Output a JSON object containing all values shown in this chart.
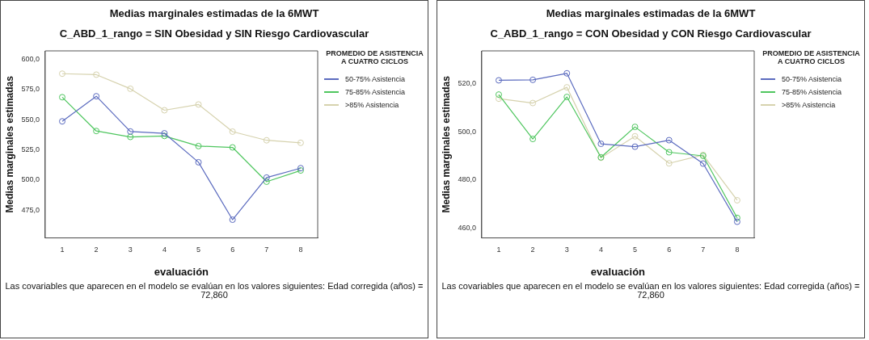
{
  "chart_data": [
    {
      "type": "line",
      "title": "Medias marginales estimadas de la 6MWT",
      "subtitle": "C_ABD_1_rango = SIN Obesidad y SIN Riesgo Cardiovascular",
      "xlabel": "evaluación",
      "ylabel": "Medias marginales estimadas",
      "legend_title": "PROMEDIO DE ASISTENCIA A CUATRO CICLOS",
      "legend": "right",
      "marker": "circle",
      "grid": false,
      "categories": [
        "1",
        "2",
        "3",
        "4",
        "5",
        "6",
        "7",
        "8"
      ],
      "ylim": [
        452,
        607
      ],
      "yticks": [
        {
          "value": 475,
          "label": "475,0"
        },
        {
          "value": 500,
          "label": "500,0"
        },
        {
          "value": 525,
          "label": "525,0"
        },
        {
          "value": 550,
          "label": "550,0"
        },
        {
          "value": 575,
          "label": "575,0"
        },
        {
          "value": 600,
          "label": "600,0"
        }
      ],
      "series": [
        {
          "name": "50-75% Asistencia",
          "color": "#5b6bbf",
          "values": [
            548.6,
            569.4,
            540.2,
            538.7,
            514.7,
            467.1,
            502.0,
            509.8
          ]
        },
        {
          "name": "75-85% Asistencia",
          "color": "#4fc65f",
          "values": [
            568.6,
            540.6,
            535.7,
            536.5,
            528.1,
            527.0,
            498.6,
            507.9
          ]
        },
        {
          "name": ">85% Asistencia",
          "color": "#d6d2ae",
          "values": [
            588.1,
            587.3,
            575.6,
            557.8,
            562.6,
            540.1,
            532.9,
            530.8
          ]
        }
      ],
      "annotations": [
        "Las covariables que aparecen en el modelo se evalúan en los valores siguientes: Edad corregida (años) = 72,860"
      ]
    },
    {
      "type": "line",
      "title": "Medias marginales estimadas de la 6MWT",
      "subtitle": "C_ABD_1_rango = CON Obesidad y CON Riesgo Cardiovascular",
      "xlabel": "evaluación",
      "ylabel": "Medias marginales estimadas",
      "legend_title": "PROMEDIO DE ASISTENCIA A CUATRO CICLOS",
      "legend": "right",
      "marker": "circle",
      "grid": false,
      "categories": [
        "1",
        "2",
        "3",
        "4",
        "5",
        "6",
        "7",
        "8"
      ],
      "ylim": [
        456,
        533.5
      ],
      "yticks": [
        {
          "value": 460,
          "label": "460,0"
        },
        {
          "value": 480,
          "label": "480,0"
        },
        {
          "value": 500,
          "label": "500,0"
        },
        {
          "value": 520,
          "label": "520,0"
        }
      ],
      "series": [
        {
          "name": "50-75% Asistencia",
          "color": "#5b6bbf",
          "values": [
            521.3,
            521.5,
            524.2,
            495.0,
            493.8,
            496.5,
            486.8,
            462.7
          ]
        },
        {
          "name": "75-85% Asistencia",
          "color": "#4fc65f",
          "values": [
            515.4,
            497.0,
            514.4,
            489.4,
            502.0,
            491.5,
            490.0,
            464.3
          ]
        },
        {
          "name": ">85% Asistencia",
          "color": "#d6d2ae",
          "values": [
            513.7,
            511.9,
            518.4,
            489.2,
            498.1,
            486.9,
            490.4,
            471.6
          ]
        }
      ],
      "annotations": [
        "Las covariables que aparecen en el modelo se evalúan en los valores siguientes: Edad corregida (años) = 72,860"
      ]
    }
  ]
}
